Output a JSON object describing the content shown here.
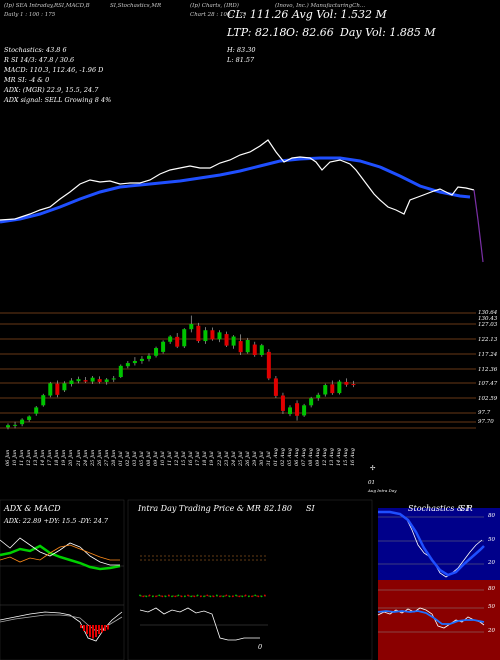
{
  "header": {
    "line1_left": "(Ip) SEA Intraday,RSI,MACD,B",
    "line1_mid": "SI,Stochastics,MR",
    "line1_ticker": "(Ip) Charts, (IRD)",
    "line1_right": "(Inovo, Inc.) ManufacturingCh...",
    "line2_left": "Daily  1 : 100 : 175",
    "line2_date": "Chart 28 : 100 : 175",
    "cl": "CL: 111.26",
    "avg_vol": "Avg Vol: 1.532  M",
    "ltp": "LTP: 82.18",
    "o": "O: 82.66",
    "day_vol": "Day Vol: 1.885  M",
    "h": "H: 83.30",
    "l": "L: 81.57"
  },
  "indicators": [
    "Stochastics: 43.8              6",
    "R              SI 14/3: 47.8 / 30.6",
    "MACD: 110.3,  112.46,  -1.96  D",
    "MR              SI: -4  & 0",
    "ADX:                    (MGR) 22.9,  15.5,  24.7",
    "ADX signal: SELL Growing 8 4%"
  ],
  "price_levels": [
    "130.64",
    "130.43",
    "127.03",
    "122.13",
    "117.24",
    "112.36",
    "107.47",
    "102.59",
    "97.7",
    "97.70"
  ],
  "dates": [
    "06 Jun",
    "10 Jun",
    "11 Jun",
    "12 Jun",
    "13 Jun",
    "14 Jun",
    "17 Jun",
    "18 Jun",
    "19 Jun",
    "20 Jun",
    "21 Jun",
    "24 Jun",
    "25 Jun",
    "26 Jun",
    "27 Jun",
    "28 Jun",
    "01 Jul",
    "02 Jul",
    "03 Jul",
    "05 Jul",
    "08 Jul",
    "09 Jul",
    "10 Jul",
    "11 Jul",
    "12 Jul",
    "15 Jul",
    "16 Jul",
    "17 Jul",
    "18 Jul",
    "19 Jul",
    "22 Jul",
    "23 Jul",
    "24 Jul",
    "25 Jul",
    "26 Jul",
    "29 Jul",
    "30 Jul",
    "31 Jul",
    "01 Aug",
    "02 Aug",
    "05 Aug",
    "06 Aug",
    "07 Aug",
    "08 Aug",
    "09 Aug",
    "12 Aug",
    "13 Aug",
    "14 Aug",
    "15 Aug",
    "16 Aug"
  ],
  "date_extra": "01",
  "date_extra_sub": "Aug Intra Day",
  "panels": {
    "adx_title": "ADX  & MACD",
    "adx_values": "ADX: 22.89 +DY: 15.5 -DY: 24.7",
    "intraday_title": "Intra Day Trading Price  & MR",
    "intraday_value": "82.180",
    "intraday_si": "SI",
    "intraday_zero": "0",
    "stoch_title": "Stochastics & R",
    "stoch_si": "SI",
    "stoch_levels": [
      "80",
      "50",
      "20"
    ],
    "rsi_levels": [
      "80",
      "50",
      "20"
    ]
  },
  "chart_data": {
    "type": "candlestick",
    "ylim": [
      97.7,
      130.64
    ],
    "candles": [
      {
        "o": 97.9,
        "h": 99.0,
        "l": 97.3,
        "c": 98.5
      },
      {
        "o": 98.4,
        "h": 99.5,
        "l": 97.6,
        "c": 98.6
      },
      {
        "o": 98.8,
        "h": 100.5,
        "l": 98.2,
        "c": 100.1
      },
      {
        "o": 100.0,
        "h": 101.3,
        "l": 99.5,
        "c": 101.0
      },
      {
        "o": 101.8,
        "h": 104.0,
        "l": 101.2,
        "c": 103.6
      },
      {
        "o": 104.2,
        "h": 107.5,
        "l": 103.8,
        "c": 107.1
      },
      {
        "o": 107.0,
        "h": 110.9,
        "l": 106.5,
        "c": 110.5
      },
      {
        "o": 110.4,
        "h": 111.3,
        "l": 106.5,
        "c": 107.2
      },
      {
        "o": 108.5,
        "h": 111.1,
        "l": 108.0,
        "c": 110.5
      },
      {
        "o": 110.3,
        "h": 112.0,
        "l": 109.6,
        "c": 111.3
      },
      {
        "o": 111.1,
        "h": 112.4,
        "l": 110.5,
        "c": 111.7
      },
      {
        "o": 111.4,
        "h": 112.3,
        "l": 110.6,
        "c": 111.0
      },
      {
        "o": 111.0,
        "h": 112.6,
        "l": 110.3,
        "c": 112.1
      },
      {
        "o": 111.7,
        "h": 112.5,
        "l": 110.4,
        "c": 110.9
      },
      {
        "o": 110.9,
        "h": 112.0,
        "l": 110.1,
        "c": 111.6
      },
      {
        "o": 111.6,
        "h": 112.6,
        "l": 110.9,
        "c": 111.9
      },
      {
        "o": 112.3,
        "h": 115.9,
        "l": 112.0,
        "c": 115.5
      },
      {
        "o": 115.4,
        "h": 116.9,
        "l": 114.8,
        "c": 116.3
      },
      {
        "o": 116.3,
        "h": 118.0,
        "l": 115.6,
        "c": 116.9
      },
      {
        "o": 116.9,
        "h": 118.3,
        "l": 116.1,
        "c": 117.5
      },
      {
        "o": 117.5,
        "h": 119.1,
        "l": 116.8,
        "c": 118.4
      },
      {
        "o": 118.4,
        "h": 121.0,
        "l": 117.9,
        "c": 120.6
      },
      {
        "o": 119.5,
        "h": 122.8,
        "l": 119.0,
        "c": 122.4
      },
      {
        "o": 122.4,
        "h": 124.3,
        "l": 121.8,
        "c": 123.9
      },
      {
        "o": 123.8,
        "h": 124.9,
        "l": 120.6,
        "c": 121.0
      },
      {
        "o": 121.1,
        "h": 126.3,
        "l": 120.6,
        "c": 126.0
      },
      {
        "o": 126.0,
        "h": 129.9,
        "l": 125.1,
        "c": 127.5
      },
      {
        "o": 127.0,
        "h": 127.8,
        "l": 122.1,
        "c": 122.6
      },
      {
        "o": 122.6,
        "h": 126.6,
        "l": 121.8,
        "c": 125.7
      },
      {
        "o": 125.7,
        "h": 126.5,
        "l": 122.7,
        "c": 123.1
      },
      {
        "o": 123.1,
        "h": 125.7,
        "l": 122.3,
        "c": 125.1
      },
      {
        "o": 124.6,
        "h": 125.3,
        "l": 120.9,
        "c": 121.3
      },
      {
        "o": 121.3,
        "h": 124.3,
        "l": 120.4,
        "c": 123.9
      },
      {
        "o": 122.6,
        "h": 124.5,
        "l": 118.6,
        "c": 119.4
      },
      {
        "o": 119.4,
        "h": 123.5,
        "l": 119.0,
        "c": 122.9
      },
      {
        "o": 121.6,
        "h": 122.4,
        "l": 118.1,
        "c": 118.6
      },
      {
        "o": 118.6,
        "h": 121.8,
        "l": 118.1,
        "c": 121.4
      },
      {
        "o": 119.5,
        "h": 120.3,
        "l": 111.4,
        "c": 111.9
      },
      {
        "o": 111.9,
        "h": 112.6,
        "l": 106.3,
        "c": 106.9
      },
      {
        "o": 107.0,
        "h": 107.8,
        "l": 101.7,
        "c": 102.6
      },
      {
        "o": 101.7,
        "h": 104.2,
        "l": 101.1,
        "c": 103.6
      },
      {
        "o": 104.8,
        "h": 105.6,
        "l": 99.8,
        "c": 101.2
      },
      {
        "o": 101.3,
        "h": 104.6,
        "l": 100.9,
        "c": 104.2
      },
      {
        "o": 104.2,
        "h": 106.6,
        "l": 103.6,
        "c": 106.2
      },
      {
        "o": 106.3,
        "h": 107.8,
        "l": 105.5,
        "c": 107.2
      },
      {
        "o": 107.3,
        "h": 110.4,
        "l": 106.7,
        "c": 110.0
      },
      {
        "o": 110.2,
        "h": 111.3,
        "l": 107.2,
        "c": 107.7
      },
      {
        "o": 107.7,
        "h": 111.5,
        "l": 107.3,
        "c": 111.0
      },
      {
        "o": 110.9,
        "h": 111.9,
        "l": 109.5,
        "c": 110.1
      },
      {
        "o": 110.3,
        "h": 111.2,
        "l": 109.4,
        "c": 110.0
      }
    ]
  }
}
